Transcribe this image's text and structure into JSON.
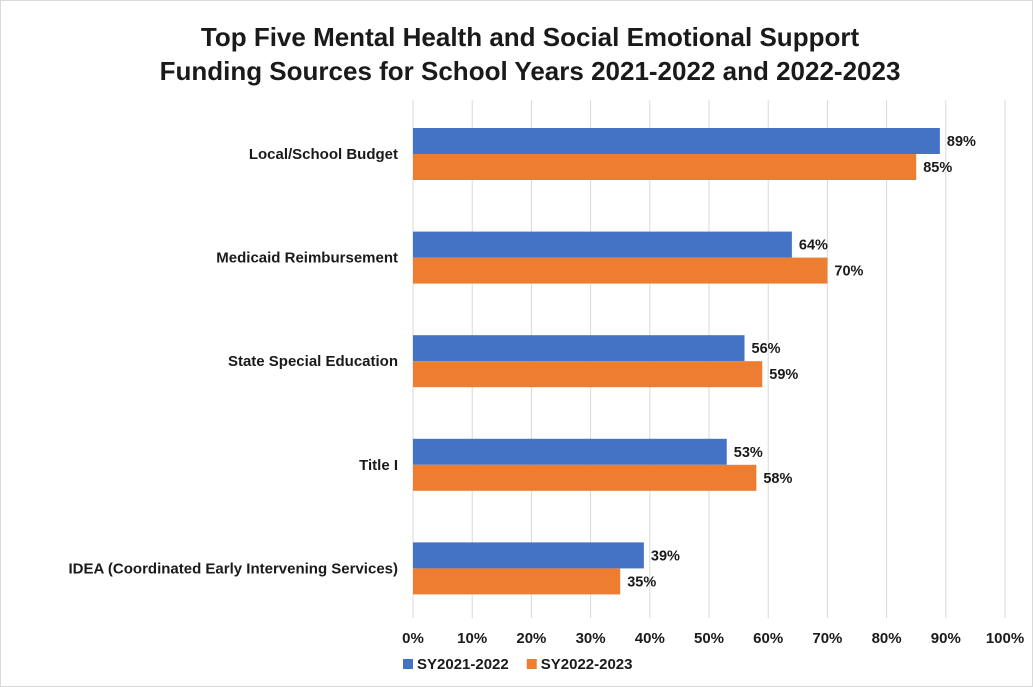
{
  "chart_data": {
    "type": "bar",
    "orientation": "horizontal",
    "title": "Top Five Mental Health and Social Emotional Support Funding Sources for School Years 2021-2022 and 2022-2023",
    "title_lines": [
      "Top Five Mental Health and Social Emotional Support",
      "Funding Sources for School Years 2021-2022 and 2022-2023"
    ],
    "categories": [
      "Local/School Budget",
      "Medicaid Reimbursement",
      "State Special Education",
      "Title I",
      "IDEA (Coordinated Early Intervening Services)"
    ],
    "series": [
      {
        "name": "SY2021-2022",
        "color": "#4472C4",
        "values": [
          89,
          64,
          56,
          53,
          39
        ]
      },
      {
        "name": "SY2022-2023",
        "color": "#ED7D31",
        "values": [
          85,
          70,
          59,
          58,
          35
        ]
      }
    ],
    "xlim": [
      0,
      100
    ],
    "xticks": [
      0,
      10,
      20,
      30,
      40,
      50,
      60,
      70,
      80,
      90,
      100
    ],
    "tick_suffix": "%",
    "value_suffix": "%",
    "xlabel": "",
    "ylabel": "",
    "grid": "vertical",
    "legend": "bottom-left"
  }
}
